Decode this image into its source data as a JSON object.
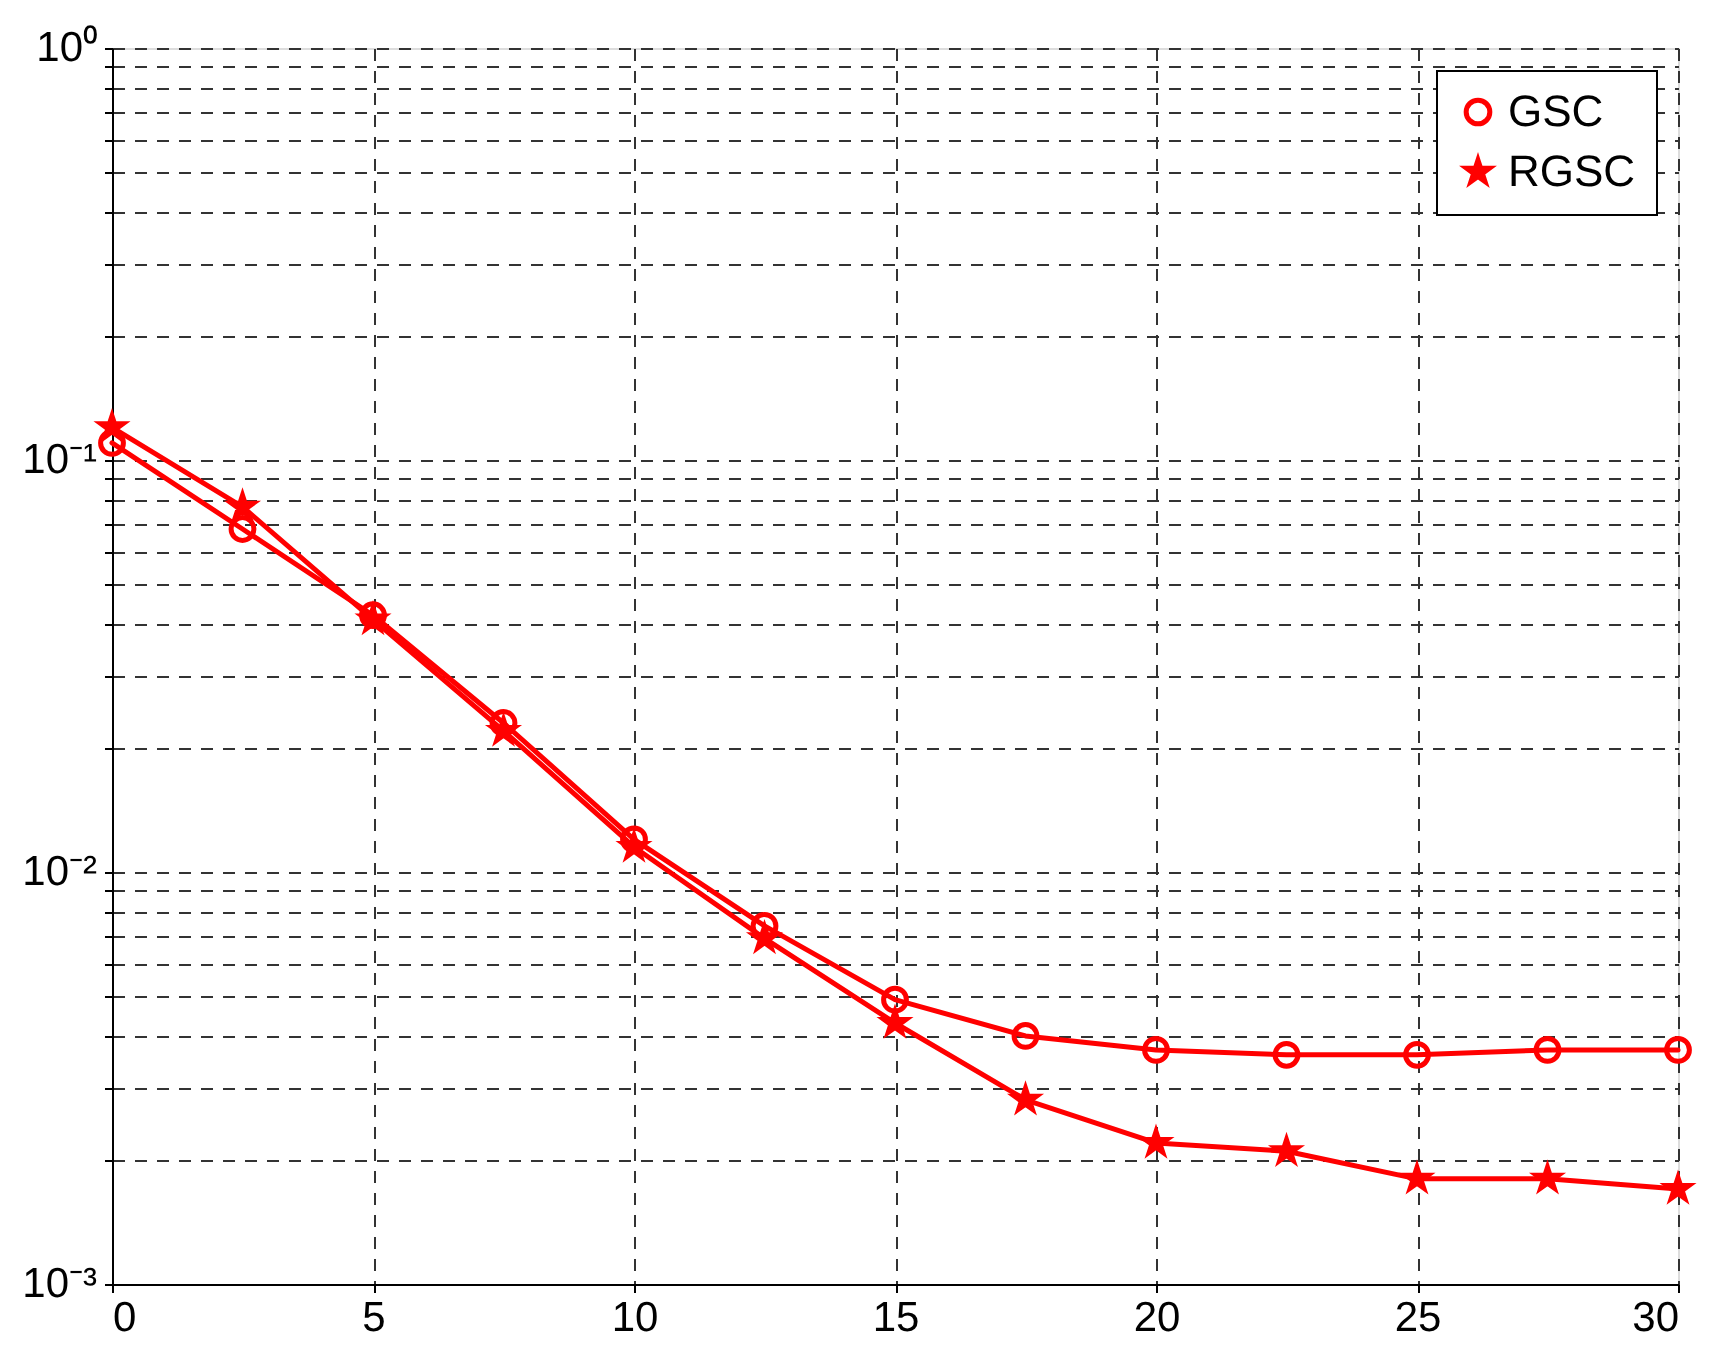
{
  "chart_data": {
    "type": "line",
    "x": [
      0,
      2.5,
      5,
      7.5,
      10,
      12.5,
      15,
      17.5,
      20,
      22.5,
      25,
      27.5,
      30
    ],
    "xlim": [
      0,
      30
    ],
    "xticks": [
      0,
      5,
      10,
      15,
      20,
      25,
      30
    ],
    "ylim": [
      0.001,
      1
    ],
    "log": true,
    "yticks": [
      {
        "value": 0.001,
        "label": "10⁻³"
      },
      {
        "value": 0.002,
        "label": null
      },
      {
        "value": 0.003,
        "label": null
      },
      {
        "value": 0.004,
        "label": null
      },
      {
        "value": 0.005,
        "label": null
      },
      {
        "value": 0.006,
        "label": null
      },
      {
        "value": 0.007,
        "label": null
      },
      {
        "value": 0.008,
        "label": null
      },
      {
        "value": 0.009,
        "label": null
      },
      {
        "value": 0.01,
        "label": "10⁻²"
      },
      {
        "value": 0.02,
        "label": null
      },
      {
        "value": 0.03,
        "label": null
      },
      {
        "value": 0.04,
        "label": null
      },
      {
        "value": 0.05,
        "label": null
      },
      {
        "value": 0.06,
        "label": null
      },
      {
        "value": 0.07,
        "label": null
      },
      {
        "value": 0.08,
        "label": null
      },
      {
        "value": 0.09,
        "label": null
      },
      {
        "value": 0.1,
        "label": "10⁻¹"
      },
      {
        "value": 0.2,
        "label": null
      },
      {
        "value": 0.3,
        "label": null
      },
      {
        "value": 0.4,
        "label": null
      },
      {
        "value": 0.5,
        "label": null
      },
      {
        "value": 0.6,
        "label": null
      },
      {
        "value": 0.7,
        "label": null
      },
      {
        "value": 0.8,
        "label": null
      },
      {
        "value": 0.9,
        "label": null
      },
      {
        "value": 1,
        "label": "10⁰"
      }
    ],
    "grid": true,
    "legend": "top right",
    "line_style": "solid",
    "series": [
      {
        "name": "GSC",
        "color": "#ff0000",
        "marker": "circle",
        "values": [
          0.11,
          0.068,
          0.042,
          0.023,
          0.012,
          0.0074,
          0.0049,
          0.004,
          0.0037,
          0.0036,
          0.0036,
          0.0037,
          0.0037
        ]
      },
      {
        "name": "RGSC",
        "color": "#ff0000",
        "marker": "star",
        "values": [
          0.12,
          0.077,
          0.041,
          0.022,
          0.0115,
          0.0069,
          0.0043,
          0.0028,
          0.0022,
          0.0021,
          0.0018,
          0.0018,
          0.0017
        ]
      }
    ]
  }
}
